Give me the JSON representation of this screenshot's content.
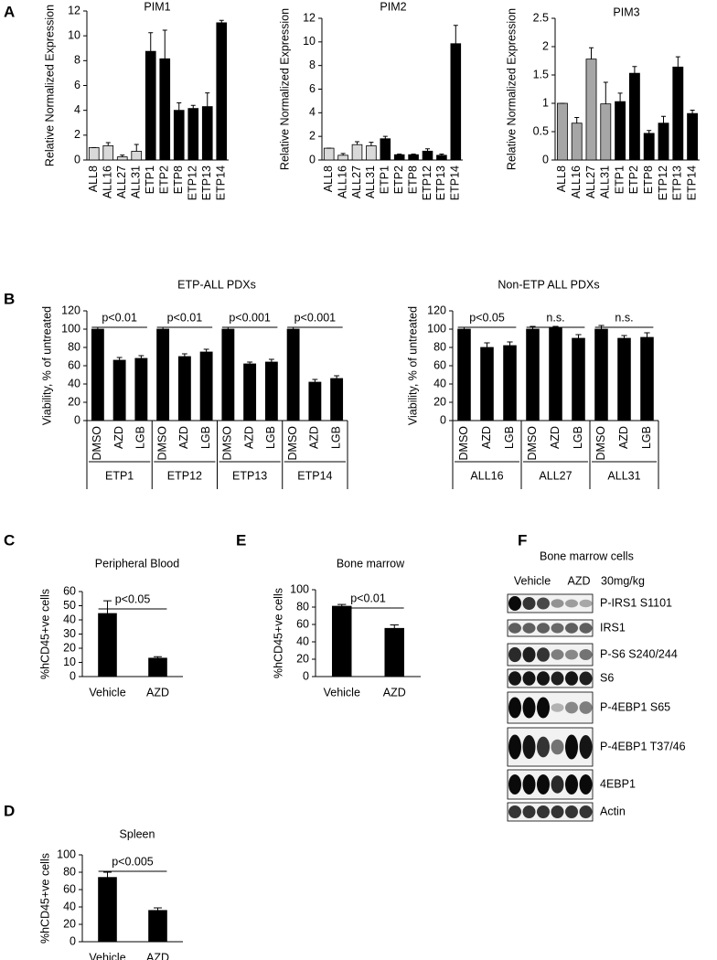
{
  "panels": [
    "A",
    "B",
    "C",
    "D",
    "E",
    "F"
  ],
  "chart_data": [
    {
      "type": "bar",
      "title": "PIM1",
      "y_label": "Relative Normalized Expression",
      "categories": [
        "ALL8",
        "ALL16",
        "ALL27",
        "ALL31",
        "ETP1",
        "ETP2",
        "ETP8",
        "ETP12",
        "ETP13",
        "ETP14"
      ],
      "values": [
        1,
        1.15,
        0.25,
        0.7,
        8.75,
        8.15,
        4.0,
        4.15,
        4.3,
        11.05
      ],
      "errors": [
        0,
        0.25,
        0.15,
        0.55,
        1.5,
        2.3,
        0.6,
        0.25,
        1.1,
        0.2
      ],
      "colors": [
        "#d9d9d9",
        "#d9d9d9",
        "#d9d9d9",
        "#d9d9d9",
        "#000000",
        "#000000",
        "#000000",
        "#000000",
        "#000000",
        "#000000"
      ],
      "ylim": [
        0,
        12
      ],
      "yticks": [
        0,
        2,
        4,
        6,
        8,
        10,
        12
      ]
    },
    {
      "type": "bar",
      "title": "PIM2",
      "y_label": "Relative Normalized Expression",
      "categories": [
        "ALL8",
        "ALL16",
        "ALL27",
        "ALL31",
        "ETP1",
        "ETP2",
        "ETP8",
        "ETP12",
        "ETP13",
        "ETP14"
      ],
      "values": [
        1,
        0.4,
        1.3,
        1.2,
        1.8,
        0.45,
        0.45,
        0.75,
        0.4,
        9.85
      ],
      "errors": [
        0,
        0.15,
        0.25,
        0.3,
        0.2,
        0.05,
        0.05,
        0.2,
        0.1,
        1.55
      ],
      "colors": [
        "#d9d9d9",
        "#d9d9d9",
        "#d9d9d9",
        "#d9d9d9",
        "#000000",
        "#000000",
        "#000000",
        "#000000",
        "#000000",
        "#000000"
      ],
      "ylim": [
        0,
        12
      ],
      "yticks": [
        0,
        2,
        4,
        6,
        8,
        10,
        12
      ]
    },
    {
      "type": "bar",
      "title": "PIM3",
      "y_label": "Relative Normalized Expression",
      "categories": [
        "ALL8",
        "ALL16",
        "ALL27",
        "ALL31",
        "ETP1",
        "ETP2",
        "ETP8",
        "ETP12",
        "ETP13",
        "ETP14"
      ],
      "values": [
        1,
        0.65,
        1.78,
        0.99,
        1.03,
        1.53,
        0.47,
        0.65,
        1.64,
        0.82
      ],
      "errors": [
        0,
        0.1,
        0.2,
        0.38,
        0.15,
        0.12,
        0.05,
        0.12,
        0.18,
        0.06
      ],
      "colors": [
        "#a6a6a6",
        "#a6a6a6",
        "#a6a6a6",
        "#a6a6a6",
        "#000000",
        "#000000",
        "#000000",
        "#000000",
        "#000000",
        "#000000"
      ],
      "ylim": [
        0,
        2.5
      ],
      "yticks": [
        0,
        0.5,
        1,
        1.5,
        2,
        2.5
      ]
    },
    {
      "type": "bar",
      "title": "ETP-ALL PDXs",
      "y_label": "Viability, % of untreated",
      "categories": [
        "DMSO",
        "AZD",
        "LGB",
        "DMSO",
        "AZD",
        "LGB",
        "DMSO",
        "AZD",
        "LGB",
        "DMSO",
        "AZD",
        "LGB"
      ],
      "groups": [
        "ETP1",
        "ETP12",
        "ETP13",
        "ETP14"
      ],
      "annotations": [
        "p<0.01",
        "p<0.01",
        "p<0.001",
        "p<0.001"
      ],
      "values": [
        100,
        66,
        68,
        100,
        70,
        75,
        100,
        62,
        64,
        100,
        42,
        46
      ],
      "errors": [
        2,
        3,
        3,
        2,
        3,
        3,
        2,
        2,
        3,
        2,
        3,
        3
      ],
      "color": "#000000",
      "ylim": [
        0,
        120
      ],
      "yticks": [
        0,
        20,
        40,
        60,
        80,
        100,
        120
      ]
    },
    {
      "type": "bar",
      "title": "Non-ETP ALL PDXs",
      "y_label": "Viability, % of untreated",
      "categories": [
        "DMSO",
        "AZD",
        "LGB",
        "DMSO",
        "AZD",
        "LGB",
        "DMSO",
        "AZD",
        "LGB"
      ],
      "groups": [
        "ALL16",
        "ALL27",
        "ALL31"
      ],
      "annotations": [
        "p<0.05",
        "n.s.",
        "n.s."
      ],
      "values": [
        100,
        80,
        82,
        100,
        102,
        90,
        100,
        90,
        91
      ],
      "errors": [
        2,
        5,
        4,
        3,
        1,
        4,
        4,
        3,
        5
      ],
      "color": "#000000",
      "ylim": [
        0,
        120
      ],
      "yticks": [
        0,
        20,
        40,
        60,
        80,
        100,
        120
      ]
    },
    {
      "type": "bar",
      "title": "Peripheral Blood",
      "y_label": "%hCD45+ve cells",
      "categories": [
        "Vehicle",
        "AZD"
      ],
      "annotations": [
        "p<0.05"
      ],
      "values": [
        44.5,
        13
      ],
      "errors": [
        9,
        1
      ],
      "color": "#000000",
      "ylim": [
        0,
        60
      ],
      "yticks": [
        0,
        10,
        20,
        30,
        40,
        50,
        60
      ]
    },
    {
      "type": "bar",
      "title": "Spleen",
      "y_label": "%hCD45+ve cells",
      "categories": [
        "Vehicle",
        "AZD"
      ],
      "annotations": [
        "p<0.005"
      ],
      "values": [
        74,
        36
      ],
      "errors": [
        6,
        3
      ],
      "color": "#000000",
      "ylim": [
        0,
        100
      ],
      "yticks": [
        0,
        20,
        40,
        60,
        80,
        100
      ]
    },
    {
      "type": "bar",
      "title": "Bone marrow",
      "y_label": "%hCD45+ve  cells",
      "categories": [
        "Vehicle",
        "AZD"
      ],
      "annotations": [
        "p<0.01"
      ],
      "values": [
        81,
        55.5
      ],
      "errors": [
        2,
        4
      ],
      "color": "#000000",
      "ylim": [
        0,
        100
      ],
      "yticks": [
        0,
        20,
        40,
        60,
        80,
        100
      ]
    }
  ],
  "blot": {
    "title": "Bone marrow cells",
    "lanes": [
      "Vehicle",
      "AZD"
    ],
    "dose": "30mg/kg",
    "rows": [
      "P-IRS1 S1101",
      "IRS1",
      "P-S6 S240/244",
      "S6",
      "P-4EBP1 S65",
      "P-4EBP1 T37/46",
      "4EBP1",
      "Actin"
    ]
  }
}
